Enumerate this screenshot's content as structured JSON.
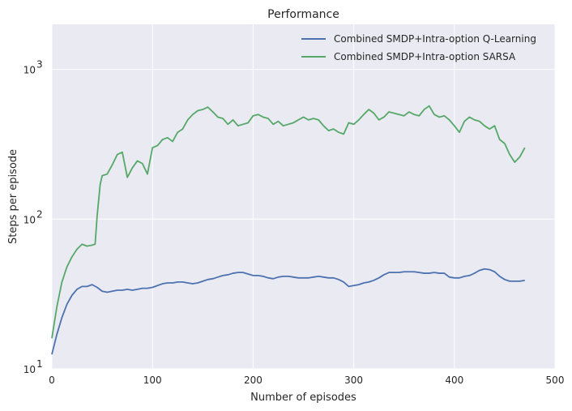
{
  "chart_data": {
    "type": "line",
    "title": "Performance",
    "xlabel": "Number of episodes",
    "ylabel": "Steps per episode",
    "xlim": [
      0,
      500
    ],
    "ylim": [
      10,
      2000
    ],
    "yscale": "log",
    "grid": true,
    "legend_position": "top-right",
    "xticks": [
      0,
      100,
      200,
      300,
      400,
      500
    ],
    "xtick_labels": [
      "0",
      "100",
      "200",
      "300",
      "400",
      "500"
    ],
    "yticks": [
      10,
      100,
      1000
    ],
    "ytick_labels": [
      {
        "base": "10",
        "exp": "1"
      },
      {
        "base": "10",
        "exp": "2"
      },
      {
        "base": "10",
        "exp": "3"
      }
    ],
    "colors": {
      "background": "#EAEAF2",
      "grid": "#FFFFFF",
      "text": "#262626"
    },
    "series": [
      {
        "name": "Combined SMDP+Intra-option Q-Learning",
        "color": "#4C72B0",
        "x": [
          0,
          5,
          10,
          15,
          20,
          25,
          30,
          35,
          40,
          45,
          50,
          55,
          60,
          65,
          70,
          75,
          80,
          85,
          90,
          95,
          100,
          105,
          110,
          115,
          120,
          125,
          130,
          135,
          140,
          145,
          150,
          155,
          160,
          165,
          170,
          175,
          180,
          185,
          190,
          195,
          200,
          205,
          210,
          215,
          220,
          225,
          230,
          235,
          240,
          245,
          250,
          255,
          260,
          265,
          270,
          275,
          280,
          285,
          290,
          295,
          300,
          305,
          310,
          315,
          320,
          325,
          330,
          335,
          340,
          345,
          350,
          355,
          360,
          365,
          370,
          375,
          380,
          385,
          390,
          395,
          400,
          405,
          410,
          415,
          420,
          425,
          430,
          435,
          440,
          445,
          450,
          455,
          460,
          465,
          470
        ],
        "y": [
          12.5,
          17,
          22,
          27,
          31,
          34,
          35.5,
          35.5,
          36.5,
          35,
          33,
          32.5,
          33,
          33.5,
          33.5,
          34,
          33.5,
          34,
          34.5,
          34.5,
          35,
          36,
          37,
          37.5,
          37.5,
          38,
          38,
          37.5,
          37,
          37.5,
          38.5,
          39.5,
          40,
          41,
          42,
          42.5,
          43.5,
          44,
          44,
          43,
          42,
          42,
          41.5,
          40.5,
          40,
          41,
          41.5,
          41.5,
          41,
          40.5,
          40.5,
          40.5,
          41,
          41.5,
          41,
          40.5,
          40.5,
          39.5,
          38,
          35.5,
          36,
          36.5,
          37.5,
          38,
          39,
          40.5,
          42.5,
          44,
          44,
          44,
          44.5,
          44.5,
          44.5,
          44,
          43.5,
          43.5,
          44,
          43.5,
          43.5,
          41,
          40.5,
          40.5,
          41.5,
          42,
          43.5,
          45.5,
          46.5,
          46,
          44.5,
          41.5,
          39.5,
          38.5,
          38.5,
          38.5,
          39
        ]
      },
      {
        "name": "Combined SMDP+Intra-option SARSA",
        "color": "#55A868",
        "x": [
          0,
          5,
          10,
          15,
          20,
          25,
          30,
          35,
          40,
          43,
          45,
          48,
          50,
          55,
          60,
          65,
          70,
          75,
          80,
          85,
          90,
          95,
          100,
          105,
          110,
          115,
          120,
          125,
          130,
          135,
          140,
          145,
          150,
          155,
          160,
          165,
          170,
          175,
          180,
          185,
          190,
          195,
          200,
          205,
          210,
          215,
          220,
          225,
          230,
          235,
          240,
          245,
          250,
          255,
          260,
          265,
          270,
          275,
          280,
          285,
          290,
          295,
          300,
          305,
          310,
          315,
          320,
          325,
          330,
          335,
          340,
          345,
          350,
          355,
          360,
          365,
          370,
          375,
          380,
          385,
          390,
          395,
          400,
          405,
          410,
          415,
          420,
          425,
          430,
          435,
          440,
          445,
          450,
          455,
          460,
          465,
          470
        ],
        "y": [
          16,
          26,
          38,
          48,
          56,
          63,
          68,
          66,
          67,
          68,
          105,
          170,
          195,
          200,
          230,
          270,
          280,
          190,
          220,
          245,
          235,
          200,
          300,
          310,
          340,
          350,
          330,
          380,
          400,
          460,
          500,
          530,
          540,
          560,
          520,
          480,
          470,
          430,
          460,
          420,
          430,
          440,
          490,
          500,
          480,
          470,
          430,
          450,
          420,
          430,
          440,
          460,
          480,
          460,
          470,
          460,
          420,
          390,
          400,
          380,
          370,
          440,
          430,
          460,
          500,
          540,
          510,
          460,
          480,
          520,
          510,
          500,
          490,
          520,
          500,
          490,
          540,
          570,
          500,
          480,
          490,
          460,
          420,
          380,
          450,
          480,
          460,
          450,
          420,
          400,
          420,
          340,
          320,
          270,
          240,
          260,
          300
        ]
      }
    ]
  }
}
